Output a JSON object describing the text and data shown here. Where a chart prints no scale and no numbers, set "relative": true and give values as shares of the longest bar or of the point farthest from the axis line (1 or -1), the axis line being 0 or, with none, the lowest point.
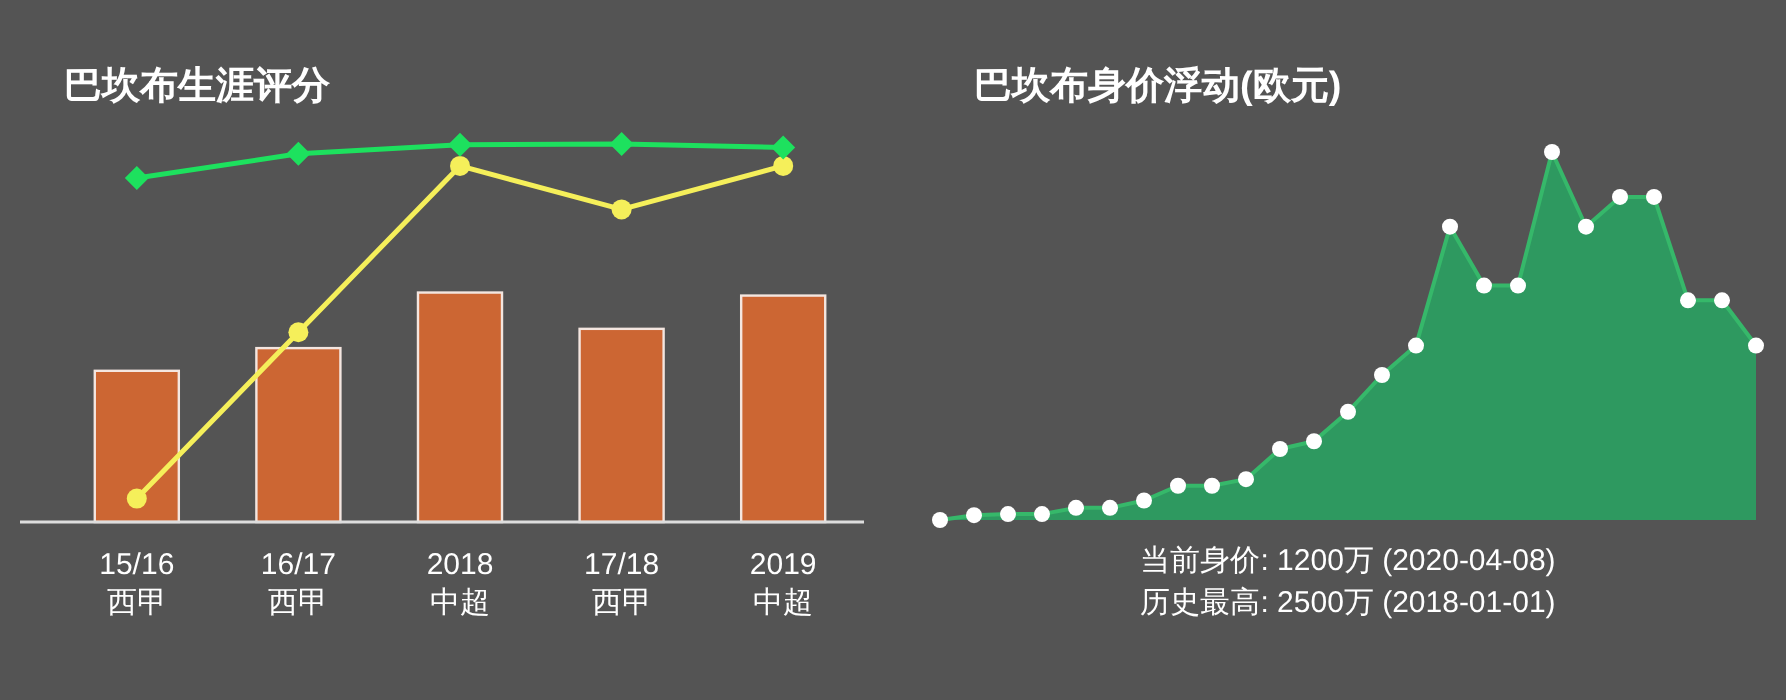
{
  "chart_data": [
    {
      "type": "bar",
      "title": "巴坎布生涯评分",
      "relative": true,
      "categories": [
        "15/16\n西甲",
        "16/17\n西甲",
        "2018\n中超",
        "17/18\n西甲",
        "2019\n中超"
      ],
      "series": [
        {
          "type": "bar",
          "color": "#cc6633",
          "values": [
            0.4,
            0.46,
            0.607,
            0.511,
            0.599
          ]
        },
        {
          "type": "line",
          "color": "#f5ef5a",
          "marker": "circle",
          "values": [
            0.062,
            0.502,
            0.942,
            0.827,
            0.942
          ]
        },
        {
          "type": "line",
          "color": "#1de15e",
          "marker": "diamond",
          "values": [
            0.91,
            0.974,
            0.998,
            1,
            0.991
          ]
        }
      ]
    },
    {
      "type": "area",
      "title": "巴坎布身价浮动(欧元)",
      "relative": true,
      "marker": "circle",
      "categories": [
        null,
        null,
        null,
        null,
        null,
        null,
        null,
        null,
        null,
        null,
        null,
        null,
        null,
        null,
        null,
        null,
        null,
        null,
        null,
        null,
        null,
        null,
        null,
        null,
        null
      ],
      "series": [
        {
          "color": "#2e9960",
          "values": [
            0,
            0.013,
            0.016,
            0.016,
            0.033,
            0.033,
            0.053,
            0.093,
            0.093,
            0.111,
            0.193,
            0.214,
            0.294,
            0.394,
            0.474,
            0.797,
            0.637,
            0.637,
            1,
            0.797,
            0.878,
            0.878,
            0.597,
            0.597,
            0.474
          ]
        }
      ],
      "annotations": [
        "当前身价: 1200万 (2020-04-08)",
        "历史最高: 2500万 (2018-01-01)"
      ]
    }
  ]
}
